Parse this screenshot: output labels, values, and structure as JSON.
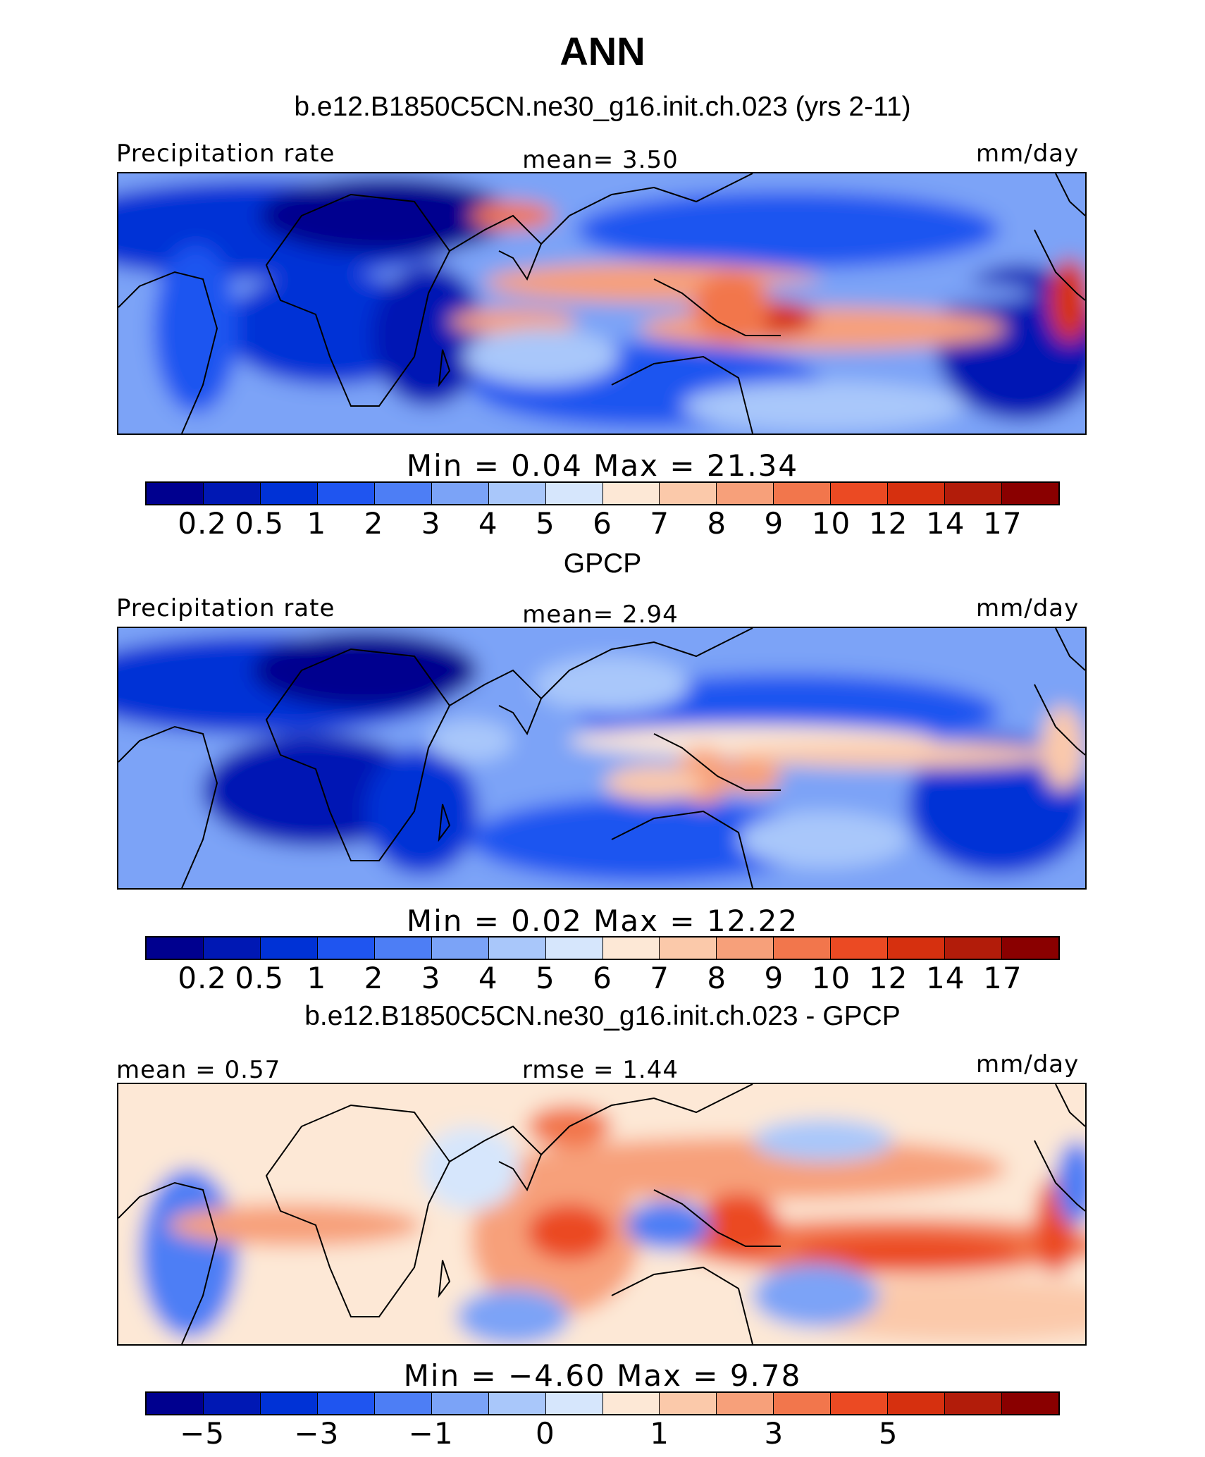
{
  "title": "ANN",
  "colors": [
    "#00008f",
    "#0018b4",
    "#0032d6",
    "#1f55f0",
    "#4d7ef5",
    "#7ba3f7",
    "#a9c7fa",
    "#d6e6fc",
    "#fde8d6",
    "#fbc9aa",
    "#f7a07a",
    "#f2764c",
    "#eb4a23",
    "#d6300f",
    "#b21c0a",
    "#8a0000"
  ],
  "panels": [
    {
      "title": "b.e12.B1850C5CN.ne30_g16.init.ch.023 (yrs 2-11)",
      "left_label": "Precipitation rate",
      "center_label": "mean=    3.50",
      "right_label": "mm/day",
      "minmax": "Min  =     0.04  Max  =    21.34",
      "ticks": [
        "0.2",
        "0.5",
        "1",
        "2",
        "3",
        "4",
        "5",
        "6",
        "7",
        "8",
        "9",
        "10",
        "12",
        "14",
        "17"
      ]
    },
    {
      "title": "GPCP",
      "left_label": "Precipitation rate",
      "center_label": "mean=    2.94",
      "right_label": "mm/day",
      "minmax": "Min  =     0.02  Max  =    12.22",
      "ticks": [
        "0.2",
        "0.5",
        "1",
        "2",
        "3",
        "4",
        "5",
        "6",
        "7",
        "8",
        "9",
        "10",
        "12",
        "14",
        "17"
      ]
    },
    {
      "title": "b.e12.B1850C5CN.ne30_g16.init.ch.023 - GPCP",
      "left_label": "mean  =    0.57",
      "center_label": "rmse  =    1.44",
      "right_label": "mm/day",
      "minmax": "Min  =   −4.60  Max  =     9.78",
      "ticks": [
        "−5",
        "",
        "−3",
        "",
        "−1",
        "",
        "0",
        "",
        "1",
        "",
        "3",
        "",
        "5",
        "",
        ""
      ]
    }
  ]
}
